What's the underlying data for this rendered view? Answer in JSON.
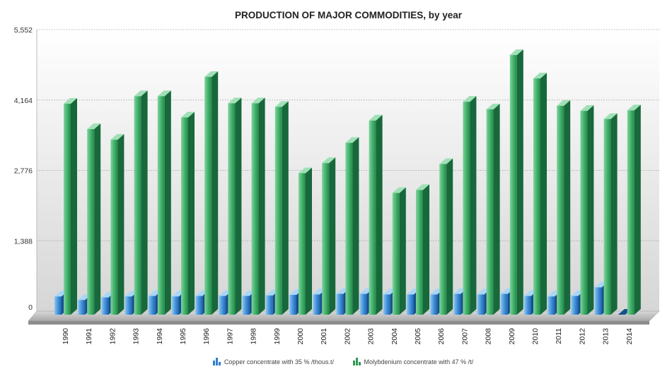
{
  "chart_data": {
    "type": "bar",
    "title": "PRODUCTION OF MAJOR COMMODITIES, by year",
    "categories": [
      "1990",
      "1991",
      "1992",
      "1993",
      "1994",
      "1995",
      "1996",
      "1997",
      "1998",
      "1999",
      "2000",
      "2001",
      "2002",
      "2003",
      "2004",
      "2005",
      "2006",
      "2007",
      "2008",
      "2009",
      "2010",
      "2011",
      "2012",
      "2013",
      "2014"
    ],
    "series": [
      {
        "name": "Copper concentrate with 35 % /thous.t/",
        "color": "#2f7fd0",
        "values": [
          360,
          290,
          340,
          360,
          370,
          360,
          370,
          370,
          370,
          380,
          390,
          400,
          410,
          410,
          400,
          400,
          400,
          410,
          400,
          410,
          370,
          360,
          370,
          540,
          0
        ]
      },
      {
        "name": "Molybdenium concentrate with 47 % /t/",
        "color": "#2f9a57",
        "values": [
          4160,
          3660,
          3450,
          4310,
          4310,
          3890,
          4690,
          4170,
          4170,
          4100,
          2790,
          2990,
          3390,
          3830,
          2400,
          2460,
          2970,
          4200,
          4050,
          5120,
          4660,
          4120,
          4020,
          3860,
          4030
        ]
      }
    ],
    "y_ticks": [
      "0",
      "1,388",
      "2,776",
      "4,164",
      "5,552"
    ],
    "ylim": [
      0,
      5552
    ],
    "grid": true,
    "legend_position": "bottom"
  }
}
